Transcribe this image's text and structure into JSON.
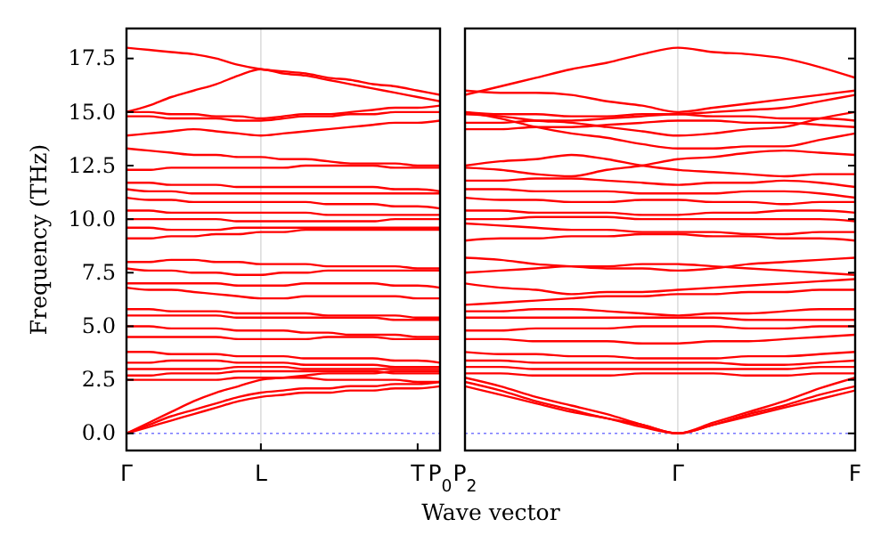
{
  "chart_data": [
    {
      "type": "line",
      "ylabel": "Frequency (THz)",
      "xlabel": "Wave vector",
      "categories": [
        "Γ",
        null,
        null,
        null,
        null,
        null,
        "L",
        null,
        null,
        null,
        null,
        null,
        null,
        "T",
        "P$_{0}$"
      ],
      "ylim": [
        -0.8,
        18.9
      ],
      "yticks": [
        {
          "value": 0,
          "label": "0.0"
        },
        2.5,
        {
          "value": 5,
          "label": "5.0"
        },
        7.5,
        {
          "value": 10,
          "label": "10.0"
        },
        12.5,
        {
          "value": 15,
          "label": "15.0"
        },
        17.5
      ],
      "line_style": "solid",
      "marker": "none",
      "ref_lines": [
        {
          "axis": "y",
          "value": 0,
          "color": "#7777ff",
          "line_style": "dotted"
        },
        {
          "axis": "x",
          "value": "L",
          "color": "#dddddd",
          "line_style": "solid"
        }
      ],
      "series": [
        {
          "color": "#ff0000",
          "values": [
            18.0,
            17.9,
            17.8,
            17.7,
            17.5,
            17.2,
            17.0,
            16.9,
            16.8,
            16.6,
            16.5,
            16.3,
            16.2,
            16.0,
            15.8
          ]
        },
        {
          "color": "#ff0000",
          "values": [
            15.0,
            15.3,
            15.7,
            16.0,
            16.3,
            16.7,
            17.0,
            16.8,
            16.7,
            16.5,
            16.3,
            16.1,
            15.9,
            15.7,
            15.5
          ]
        },
        {
          "color": "#ff0000",
          "values": [
            15.0,
            15.0,
            14.9,
            14.9,
            14.8,
            14.8,
            14.7,
            14.8,
            14.9,
            14.9,
            15.0,
            15.1,
            15.2,
            15.2,
            15.3
          ]
        },
        {
          "color": "#ff0000",
          "values": [
            14.8,
            14.8,
            14.7,
            14.7,
            14.7,
            14.6,
            14.6,
            14.7,
            14.8,
            14.8,
            14.9,
            14.9,
            15.0,
            15.0,
            15.0
          ]
        },
        {
          "color": "#ff0000",
          "values": [
            13.9,
            14.0,
            14.1,
            14.2,
            14.1,
            14.0,
            13.9,
            14.0,
            14.1,
            14.2,
            14.3,
            14.4,
            14.5,
            14.5,
            14.6
          ]
        },
        {
          "color": "#ff0000",
          "values": [
            13.3,
            13.2,
            13.1,
            13.0,
            13.0,
            12.9,
            12.9,
            12.8,
            12.8,
            12.7,
            12.6,
            12.6,
            12.6,
            12.5,
            12.5
          ]
        },
        {
          "color": "#ff0000",
          "values": [
            12.3,
            12.3,
            12.4,
            12.4,
            12.4,
            12.4,
            12.4,
            12.4,
            12.5,
            12.5,
            12.5,
            12.5,
            12.4,
            12.4,
            12.4
          ]
        },
        {
          "color": "#ff0000",
          "values": [
            11.7,
            11.7,
            11.6,
            11.6,
            11.6,
            11.5,
            11.5,
            11.5,
            11.5,
            11.5,
            11.5,
            11.5,
            11.4,
            11.4,
            11.3
          ]
        },
        {
          "color": "#ff0000",
          "values": [
            11.4,
            11.3,
            11.3,
            11.2,
            11.2,
            11.2,
            11.2,
            11.2,
            11.2,
            11.2,
            11.2,
            11.2,
            11.2,
            11.2,
            11.2
          ]
        },
        {
          "color": "#ff0000",
          "values": [
            11.0,
            10.9,
            10.9,
            10.8,
            10.8,
            10.8,
            10.8,
            10.8,
            10.8,
            10.7,
            10.7,
            10.7,
            10.6,
            10.6,
            10.5
          ]
        },
        {
          "color": "#ff0000",
          "values": [
            10.4,
            10.4,
            10.3,
            10.3,
            10.3,
            10.3,
            10.3,
            10.3,
            10.3,
            10.2,
            10.2,
            10.2,
            10.2,
            10.2,
            10.2
          ]
        },
        {
          "color": "#ff0000",
          "values": [
            10.0,
            10.0,
            10.0,
            10.0,
            10.0,
            9.9,
            9.9,
            9.9,
            9.9,
            9.9,
            9.9,
            9.9,
            10.0,
            10.0,
            10.0
          ]
        },
        {
          "color": "#ff0000",
          "values": [
            9.6,
            9.6,
            9.5,
            9.5,
            9.5,
            9.6,
            9.6,
            9.6,
            9.6,
            9.6,
            9.6,
            9.6,
            9.6,
            9.6,
            9.6
          ]
        },
        {
          "color": "#ff0000",
          "values": [
            9.1,
            9.1,
            9.2,
            9.2,
            9.3,
            9.3,
            9.4,
            9.4,
            9.5,
            9.5,
            9.5,
            9.5,
            9.5,
            9.5,
            9.5
          ]
        },
        {
          "color": "#ff0000",
          "values": [
            8.0,
            8.0,
            8.1,
            8.1,
            8.0,
            8.0,
            7.9,
            7.9,
            7.9,
            7.8,
            7.8,
            7.8,
            7.8,
            7.7,
            7.7
          ]
        },
        {
          "color": "#ff0000",
          "values": [
            7.7,
            7.6,
            7.6,
            7.5,
            7.5,
            7.4,
            7.4,
            7.5,
            7.5,
            7.6,
            7.6,
            7.6,
            7.6,
            7.6,
            7.6
          ]
        },
        {
          "color": "#ff0000",
          "values": [
            7.0,
            7.0,
            7.0,
            7.0,
            7.0,
            6.9,
            6.9,
            6.9,
            7.0,
            7.0,
            7.0,
            7.0,
            6.9,
            6.9,
            6.8
          ]
        },
        {
          "color": "#ff0000",
          "values": [
            6.8,
            6.7,
            6.7,
            6.6,
            6.5,
            6.4,
            6.3,
            6.3,
            6.4,
            6.4,
            6.4,
            6.4,
            6.4,
            6.3,
            6.3
          ]
        },
        {
          "color": "#ff0000",
          "values": [
            5.8,
            5.8,
            5.7,
            5.7,
            5.7,
            5.6,
            5.6,
            5.6,
            5.6,
            5.5,
            5.5,
            5.5,
            5.5,
            5.4,
            5.4
          ]
        },
        {
          "color": "#ff0000",
          "values": [
            5.5,
            5.5,
            5.5,
            5.5,
            5.5,
            5.4,
            5.4,
            5.4,
            5.4,
            5.4,
            5.4,
            5.4,
            5.3,
            5.3,
            5.3
          ]
        },
        {
          "color": "#ff0000",
          "values": [
            5.0,
            5.0,
            4.9,
            4.9,
            4.9,
            4.8,
            4.8,
            4.8,
            4.7,
            4.7,
            4.6,
            4.6,
            4.6,
            4.5,
            4.5
          ]
        },
        {
          "color": "#ff0000",
          "values": [
            4.5,
            4.5,
            4.5,
            4.5,
            4.5,
            4.4,
            4.4,
            4.4,
            4.4,
            4.5,
            4.5,
            4.5,
            4.4,
            4.4,
            4.4
          ]
        },
        {
          "color": "#ff0000",
          "values": [
            3.8,
            3.8,
            3.7,
            3.7,
            3.7,
            3.6,
            3.6,
            3.6,
            3.5,
            3.5,
            3.5,
            3.5,
            3.4,
            3.4,
            3.3
          ]
        },
        {
          "color": "#ff0000",
          "values": [
            3.3,
            3.3,
            3.4,
            3.4,
            3.4,
            3.3,
            3.3,
            3.3,
            3.2,
            3.2,
            3.2,
            3.2,
            3.1,
            3.1,
            3.1
          ]
        },
        {
          "color": "#ff0000",
          "values": [
            3.0,
            3.0,
            3.0,
            3.0,
            3.0,
            3.1,
            3.1,
            3.1,
            3.0,
            3.0,
            3.0,
            3.0,
            3.0,
            3.0,
            3.0
          ]
        },
        {
          "color": "#ff0000",
          "values": [
            2.7,
            2.7,
            2.8,
            2.8,
            2.8,
            2.9,
            2.9,
            2.9,
            2.9,
            2.9,
            2.9,
            2.9,
            2.8,
            2.8,
            2.8
          ]
        },
        {
          "color": "#ff0000",
          "values": [
            2.5,
            2.5,
            2.5,
            2.5,
            2.5,
            2.6,
            2.6,
            2.6,
            2.6,
            2.5,
            2.5,
            2.5,
            2.5,
            2.4,
            2.4
          ]
        },
        {
          "color": "#ff0000",
          "values": [
            0,
            0.5,
            1.0,
            1.5,
            1.9,
            2.2,
            2.5,
            2.6,
            2.7,
            2.8,
            2.8,
            2.8,
            2.9,
            2.9,
            2.9
          ]
        },
        {
          "color": "#ff0000",
          "values": [
            0,
            0.4,
            0.8,
            1.1,
            1.4,
            1.7,
            1.9,
            2.0,
            2.1,
            2.1,
            2.2,
            2.2,
            2.3,
            2.3,
            2.4
          ]
        },
        {
          "color": "#ff0000",
          "values": [
            0,
            0.3,
            0.6,
            0.9,
            1.2,
            1.5,
            1.7,
            1.8,
            1.9,
            1.9,
            2.0,
            2.0,
            2.1,
            2.1,
            2.2
          ]
        }
      ]
    },
    {
      "type": "line",
      "categories": [
        "P$_{2}$",
        null,
        null,
        null,
        null,
        null,
        "Γ",
        null,
        null,
        null,
        null,
        "F"
      ],
      "ylim": [
        -0.8,
        18.9
      ],
      "yticks": [
        0,
        2.5,
        5,
        7.5,
        10,
        12.5,
        15,
        17.5
      ],
      "tick_labels": "x",
      "line_style": "solid",
      "marker": "none",
      "ref_lines": [
        {
          "axis": "y",
          "value": 0,
          "color": "#7777ff",
          "line_style": "dotted"
        },
        {
          "axis": "x",
          "value": "Γ",
          "color": "#dddddd",
          "line_style": "solid"
        }
      ],
      "series": [
        {
          "color": "#ff0000",
          "values": [
            15.8,
            16.2,
            16.6,
            17.0,
            17.3,
            17.7,
            18.0,
            17.8,
            17.7,
            17.5,
            17.1,
            16.6
          ]
        },
        {
          "color": "#ff0000",
          "values": [
            16.0,
            15.9,
            15.9,
            15.8,
            15.5,
            15.3,
            15.0,
            15.2,
            15.4,
            15.6,
            15.8,
            16.0
          ]
        },
        {
          "color": "#ff0000",
          "values": [
            15.0,
            14.9,
            14.9,
            14.8,
            14.8,
            14.9,
            14.9,
            15.0,
            15.1,
            15.2,
            15.5,
            15.8
          ]
        },
        {
          "color": "#ff0000",
          "values": [
            14.9,
            14.8,
            14.6,
            14.5,
            14.3,
            14.1,
            13.9,
            14.0,
            14.2,
            14.3,
            14.7,
            15.0
          ]
        },
        {
          "color": "#ff0000",
          "values": [
            14.5,
            14.5,
            14.6,
            14.6,
            14.7,
            14.8,
            14.9,
            14.8,
            14.8,
            14.7,
            14.7,
            14.6
          ]
        },
        {
          "color": "#ff0000",
          "values": [
            14.2,
            14.2,
            14.3,
            14.3,
            14.4,
            14.5,
            14.6,
            14.6,
            14.5,
            14.5,
            14.4,
            14.3
          ]
        },
        {
          "color": "#ff0000",
          "values": [
            15.0,
            14.7,
            14.3,
            14.0,
            13.8,
            13.5,
            13.3,
            13.3,
            13.4,
            13.4,
            13.7,
            14.0
          ]
        },
        {
          "color": "#ff0000",
          "values": [
            12.5,
            12.7,
            12.8,
            13.0,
            12.8,
            12.5,
            12.3,
            12.2,
            12.1,
            12.0,
            12.1,
            12.1
          ]
        },
        {
          "color": "#ff0000",
          "values": [
            12.4,
            12.3,
            12.1,
            12.0,
            12.3,
            12.5,
            12.8,
            12.9,
            13.1,
            13.2,
            13.1,
            13.0
          ]
        },
        {
          "color": "#ff0000",
          "values": [
            11.8,
            11.8,
            11.9,
            11.9,
            11.8,
            11.7,
            11.6,
            11.7,
            11.7,
            11.8,
            11.7,
            11.5
          ]
        },
        {
          "color": "#ff0000",
          "values": [
            11.4,
            11.4,
            11.3,
            11.3,
            11.3,
            11.2,
            11.2,
            11.2,
            11.3,
            11.3,
            11.2,
            11.0
          ]
        },
        {
          "color": "#ff0000",
          "values": [
            11.0,
            10.9,
            10.9,
            10.8,
            10.8,
            10.9,
            10.9,
            10.8,
            10.8,
            10.7,
            10.8,
            10.8
          ]
        },
        {
          "color": "#ff0000",
          "values": [
            10.4,
            10.4,
            10.3,
            10.3,
            10.3,
            10.2,
            10.2,
            10.3,
            10.3,
            10.4,
            10.4,
            10.3
          ]
        },
        {
          "color": "#ff0000",
          "values": [
            10.0,
            10.0,
            10.1,
            10.1,
            10.1,
            10.0,
            10.0,
            10.0,
            10.0,
            10.0,
            10.0,
            9.9
          ]
        },
        {
          "color": "#ff0000",
          "values": [
            9.8,
            9.7,
            9.6,
            9.5,
            9.5,
            9.4,
            9.4,
            9.4,
            9.3,
            9.3,
            9.4,
            9.4
          ]
        },
        {
          "color": "#ff0000",
          "values": [
            9.0,
            9.1,
            9.1,
            9.2,
            9.2,
            9.3,
            9.3,
            9.2,
            9.2,
            9.1,
            9.1,
            9.0
          ]
        },
        {
          "color": "#ff0000",
          "values": [
            8.2,
            8.1,
            7.9,
            7.8,
            7.7,
            7.7,
            7.6,
            7.7,
            7.9,
            8.0,
            8.1,
            8.2
          ]
        },
        {
          "color": "#ff0000",
          "values": [
            7.5,
            7.6,
            7.7,
            7.8,
            7.8,
            7.9,
            7.9,
            7.8,
            7.7,
            7.6,
            7.5,
            7.4
          ]
        },
        {
          "color": "#ff0000",
          "values": [
            7.0,
            6.8,
            6.7,
            6.5,
            6.6,
            6.6,
            6.7,
            6.8,
            6.9,
            7.0,
            7.1,
            7.2
          ]
        },
        {
          "color": "#ff0000",
          "values": [
            6.0,
            6.1,
            6.2,
            6.3,
            6.4,
            6.4,
            6.5,
            6.5,
            6.6,
            6.6,
            6.7,
            6.7
          ]
        },
        {
          "color": "#ff0000",
          "values": [
            5.7,
            5.7,
            5.8,
            5.8,
            5.7,
            5.6,
            5.5,
            5.6,
            5.6,
            5.7,
            5.8,
            5.8
          ]
        },
        {
          "color": "#ff0000",
          "values": [
            5.4,
            5.4,
            5.4,
            5.4,
            5.4,
            5.4,
            5.4,
            5.4,
            5.3,
            5.3,
            5.3,
            5.3
          ]
        },
        {
          "color": "#ff0000",
          "values": [
            4.8,
            4.8,
            4.9,
            4.9,
            4.9,
            5.0,
            5.0,
            5.0,
            4.9,
            4.9,
            5.0,
            5.0
          ]
        },
        {
          "color": "#ff0000",
          "values": [
            4.4,
            4.4,
            4.3,
            4.3,
            4.3,
            4.2,
            4.2,
            4.3,
            4.3,
            4.4,
            4.5,
            4.6
          ]
        },
        {
          "color": "#ff0000",
          "values": [
            3.8,
            3.7,
            3.7,
            3.6,
            3.6,
            3.5,
            3.5,
            3.5,
            3.6,
            3.6,
            3.7,
            3.8
          ]
        },
        {
          "color": "#ff0000",
          "values": [
            3.4,
            3.4,
            3.3,
            3.3,
            3.3,
            3.3,
            3.3,
            3.3,
            3.2,
            3.2,
            3.3,
            3.4
          ]
        },
        {
          "color": "#ff0000",
          "values": [
            3.1,
            3.1,
            3.0,
            3.0,
            3.0,
            3.0,
            3.0,
            3.0,
            3.0,
            3.0,
            3.1,
            3.1
          ]
        },
        {
          "color": "#ff0000",
          "values": [
            2.8,
            2.8,
            2.7,
            2.7,
            2.7,
            2.8,
            2.8,
            2.8,
            2.7,
            2.7,
            2.8,
            2.8
          ]
        },
        {
          "color": "#ff0000",
          "values": [
            2.6,
            2.2,
            1.7,
            1.3,
            0.9,
            0.4,
            0,
            0.5,
            1.0,
            1.5,
            2.1,
            2.6
          ]
        },
        {
          "color": "#ff0000",
          "values": [
            2.4,
            2.0,
            1.5,
            1.1,
            0.7,
            0.4,
            0,
            0.4,
            0.9,
            1.3,
            1.8,
            2.2
          ]
        },
        {
          "color": "#ff0000",
          "values": [
            2.2,
            1.8,
            1.4,
            1.0,
            0.7,
            0.3,
            0,
            0.4,
            0.8,
            1.2,
            1.6,
            2.0
          ]
        }
      ]
    }
  ]
}
